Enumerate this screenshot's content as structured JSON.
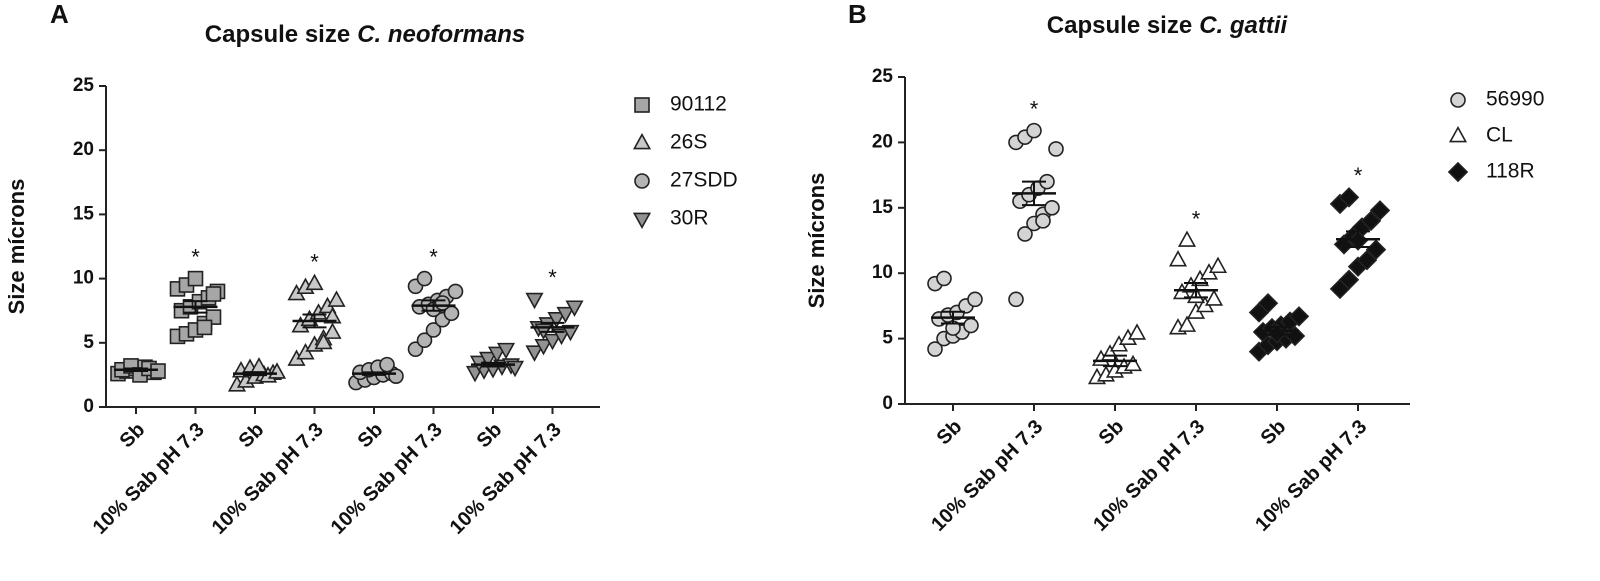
{
  "chart_data": [
    {
      "type": "dotplot",
      "panel": "A",
      "title": "Capsule size",
      "title_italic": "C. neoformans",
      "ylabel": "Size mícrons",
      "categories": [
        "Sb",
        "10% Sab pH 7.3",
        "Sb",
        "10% Sab pH 7.3",
        "Sb",
        "10% Sab pH 7.3",
        "Sb",
        "10% Sab pH 7.3"
      ],
      "ylim": [
        0,
        25
      ],
      "yticks": [
        0,
        5,
        10,
        15,
        20,
        25
      ],
      "significance": [
        null,
        "*",
        null,
        "*",
        null,
        "*",
        null,
        "*"
      ],
      "series": [
        {
          "name": "90112",
          "marker": "square",
          "color": "#a6a6a6",
          "values": [
            [
              2.6,
              2.8,
              3.0,
              3.1,
              2.7,
              2.9,
              3.2,
              2.5,
              3.0,
              2.8
            ],
            [
              5.5,
              5.7,
              6.0,
              6.5,
              7.0,
              7.5,
              7.8,
              8.2,
              8.5,
              9.0,
              9.2,
              9.5,
              10.0,
              6.2,
              8.8
            ],
            null,
            null,
            null,
            null,
            null,
            null
          ],
          "means": [
            2.9,
            7.8,
            null,
            null,
            null,
            null,
            null,
            null
          ],
          "errors": [
            0.1,
            0.45,
            null,
            null,
            null,
            null,
            null,
            null
          ]
        },
        {
          "name": "26S",
          "marker": "triangle",
          "color": "#c8c8c8",
          "values": [
            null,
            null,
            [
              1.7,
              2.0,
              2.3,
              2.5,
              2.6,
              2.8,
              3.0,
              3.1,
              2.4,
              2.7
            ],
            [
              3.7,
              4.2,
              4.8,
              5.3,
              5.8,
              6.3,
              6.8,
              7.3,
              7.8,
              8.3,
              8.8,
              9.3,
              9.6,
              5.0,
              7.0
            ],
            null,
            null,
            null,
            null
          ],
          "means": [
            null,
            null,
            2.6,
            6.7,
            null,
            null,
            null,
            null
          ],
          "errors": [
            null,
            null,
            0.12,
            0.5,
            null,
            null,
            null,
            null
          ]
        },
        {
          "name": "27SDD",
          "marker": "circle",
          "color": "#b4b4b4",
          "values": [
            null,
            null,
            null,
            null,
            [
              1.9,
              2.1,
              2.3,
              2.5,
              2.6,
              2.7,
              2.9,
              3.1,
              3.3,
              2.4
            ],
            [
              4.5,
              5.2,
              6.0,
              6.8,
              7.3,
              7.8,
              8.0,
              8.3,
              8.6,
              9.0,
              9.4,
              10.0,
              7.6,
              8.1
            ],
            null,
            null
          ],
          "means": [
            null,
            null,
            null,
            null,
            2.6,
            7.9,
            null,
            null
          ],
          "errors": [
            null,
            null,
            null,
            null,
            0.1,
            0.4,
            null,
            null
          ]
        },
        {
          "name": "30R",
          "marker": "triangle-down",
          "color": "#929292",
          "values": [
            null,
            null,
            null,
            null,
            null,
            null,
            [
              2.7,
              2.9,
              3.0,
              3.2,
              3.3,
              3.5,
              3.8,
              4.2,
              4.5,
              3.1
            ],
            [
              4.3,
              4.8,
              5.2,
              5.6,
              5.9,
              6.2,
              6.5,
              6.9,
              7.3,
              7.8,
              8.4,
              6.0
            ]
          ],
          "means": [
            null,
            null,
            null,
            null,
            null,
            null,
            3.3,
            6.2
          ],
          "errors": [
            null,
            null,
            null,
            null,
            null,
            null,
            0.15,
            0.35
          ]
        }
      ]
    },
    {
      "type": "dotplot",
      "panel": "B",
      "title": "Capsule size",
      "title_italic": "C. gattii",
      "ylabel": "Size mícrons",
      "categories": [
        "Sb",
        "10% Sab pH 7.3",
        "Sb",
        "10% Sab pH 7.3",
        "Sb",
        "10% Sab pH 7.3"
      ],
      "ylim": [
        0,
        25
      ],
      "yticks": [
        0,
        5,
        10,
        15,
        20,
        25
      ],
      "significance": [
        null,
        "*",
        null,
        "*",
        null,
        "*"
      ],
      "series": [
        {
          "name": "56990",
          "marker": "circle",
          "color": "#d4d4d4",
          "values": [
            [
              4.2,
              5.0,
              5.2,
              5.5,
              6.0,
              6.5,
              6.8,
              7.0,
              7.5,
              8.0,
              9.2,
              9.6,
              5.8
            ],
            [
              8.0,
              13.0,
              13.8,
              14.5,
              15.0,
              15.5,
              16.0,
              16.5,
              17.0,
              19.5,
              20.0,
              20.4,
              20.9,
              14.0
            ],
            null,
            null,
            null,
            null
          ],
          "means": [
            6.6,
            16.1,
            null,
            null,
            null,
            null
          ],
          "errors": [
            0.45,
            0.9,
            null,
            null,
            null,
            null
          ]
        },
        {
          "name": "CL",
          "marker": "triangle",
          "color": "#ffffff",
          "values": [
            null,
            null,
            [
              2.0,
              2.2,
              2.5,
              2.8,
              3.0,
              3.4,
              3.8,
              4.5,
              5.0,
              5.4
            ],
            [
              5.8,
              6.0,
              7.0,
              7.5,
              8.0,
              8.5,
              9.0,
              9.5,
              10.0,
              10.5,
              11.0,
              12.5,
              8.2
            ],
            null,
            null
          ],
          "means": [
            null,
            null,
            3.3,
            8.7,
            null,
            null
          ],
          "errors": [
            null,
            null,
            0.4,
            0.55,
            null,
            null
          ]
        },
        {
          "name": "118R",
          "marker": "diamond",
          "color": "#111111",
          "values": [
            null,
            null,
            null,
            null,
            [
              4.0,
              4.5,
              4.8,
              5.0,
              5.2,
              5.5,
              5.8,
              6.0,
              6.3,
              6.7,
              7.0,
              7.7,
              5.4
            ],
            [
              8.8,
              9.5,
              10.5,
              11.0,
              11.8,
              12.2,
              12.8,
              13.5,
              14.0,
              14.8,
              15.3,
              15.8,
              12.5
            ]
          ],
          "means": [
            null,
            null,
            null,
            null,
            5.6,
            12.6
          ],
          "errors": [
            null,
            null,
            null,
            null,
            0.3,
            0.6
          ]
        }
      ]
    }
  ]
}
